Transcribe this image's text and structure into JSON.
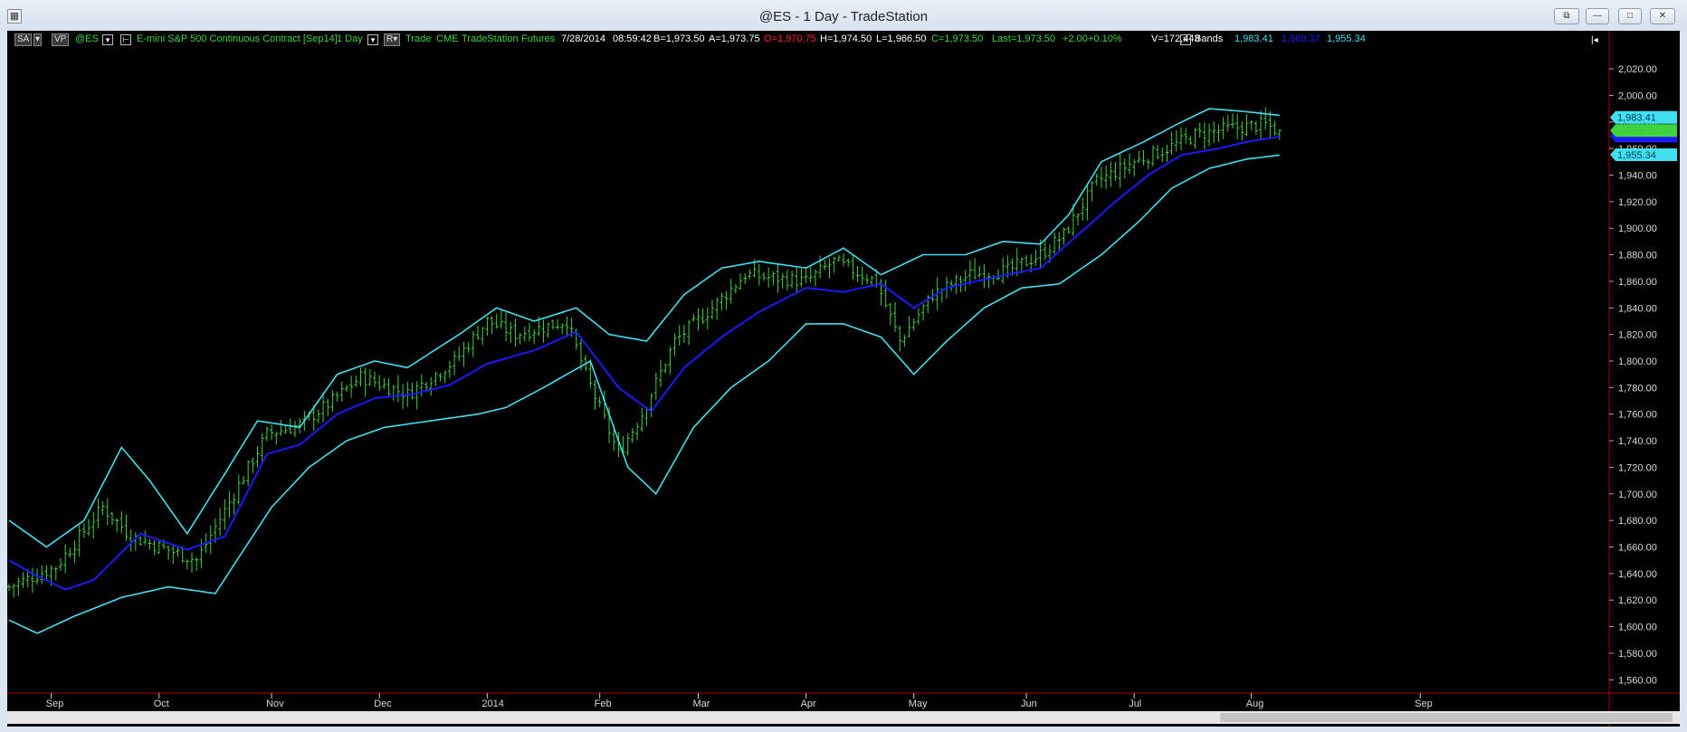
{
  "window": {
    "title": "@ES - 1 Day - TradeStation",
    "app_icon": "chart-app-icon",
    "buttons": [
      "restore-down-icon",
      "minimize-icon",
      "maximize-icon",
      "close-icon"
    ]
  },
  "toolbar": {
    "sa_label": "SA",
    "vp_label": "VP",
    "symbol": "@ES",
    "description": "E-mini S&P 500 Continuous Contract [Sep14]",
    "interval": "1 Day",
    "r_label": "R",
    "type": "Trade",
    "exchange": "CME",
    "source": "TradeStation",
    "category": "Futures",
    "date": "7/28/2014",
    "time": "08:59:42",
    "bid": "B=1,973.50",
    "ask": "A=1,973.75",
    "open": "O=1,970.75",
    "high": "H=1,974.50",
    "low": "L=1,966.50",
    "close": "C=1,973.50",
    "last": "Last=1,973.50",
    "change": "+2.00",
    "change_pct": "+0.10%",
    "volume": "V=172,443",
    "study_name": "Bands",
    "band_upper": "1,983.41",
    "band_mid": "1,969.37",
    "band_lower": "1,955.34",
    "expand_label": "|◂",
    "colors": {
      "green": "#3fd23f",
      "red": "#ff2020",
      "cyan": "#40e0f0",
      "blue": "#1a1aff",
      "white": "#ffffff"
    }
  },
  "axis": {
    "price_labels": [
      "2,020.00",
      "2,000.00",
      "1,980.00",
      "1,960.00",
      "1,940.00",
      "1,920.00",
      "1,900.00",
      "1,880.00",
      "1,860.00",
      "1,840.00",
      "1,820.00",
      "1,800.00",
      "1,780.00",
      "1,760.00",
      "1,740.00",
      "1,720.00",
      "1,700.00",
      "1,680.00",
      "1,660.00",
      "1,640.00",
      "1,620.00",
      "1,600.00",
      "1,580.00",
      "1,560.00"
    ],
    "price_values": [
      2020,
      2000,
      1980,
      1960,
      1940,
      1920,
      1900,
      1880,
      1860,
      1840,
      1820,
      1800,
      1780,
      1760,
      1740,
      1720,
      1700,
      1680,
      1660,
      1640,
      1620,
      1600,
      1580,
      1560
    ],
    "time_labels": [
      "Sep",
      "Oct",
      "Nov",
      "Dec",
      "2014",
      "Feb",
      "Mar",
      "Apr",
      "May",
      "Jun",
      "Jul",
      "Aug",
      "Sep"
    ],
    "time_bar_index": [
      9,
      32,
      56,
      79,
      102,
      126,
      147,
      170,
      193,
      217,
      240,
      265,
      301
    ]
  },
  "price_tags": {
    "upper": "1,983.41",
    "last": "1,973.50",
    "mid": "1,969.37",
    "lower": "1,955.34"
  },
  "chart_data": {
    "type": "line",
    "symbol": "@ES",
    "interval": "1 Day",
    "ylim": [
      1550,
      2035
    ],
    "key_points": [
      [
        0,
        1630
      ],
      [
        10,
        1645
      ],
      [
        20,
        1690
      ],
      [
        26,
        1668
      ],
      [
        40,
        1650
      ],
      [
        48,
        1700
      ],
      [
        55,
        1745
      ],
      [
        62,
        1752
      ],
      [
        69,
        1770
      ],
      [
        75,
        1788
      ],
      [
        85,
        1775
      ],
      [
        95,
        1800
      ],
      [
        102,
        1830
      ],
      [
        108,
        1820
      ],
      [
        119,
        1830
      ],
      [
        123,
        1790
      ],
      [
        130,
        1730
      ],
      [
        135,
        1760
      ],
      [
        142,
        1815
      ],
      [
        150,
        1840
      ],
      [
        157,
        1865
      ],
      [
        170,
        1860
      ],
      [
        176,
        1875
      ],
      [
        185,
        1860
      ],
      [
        190,
        1815
      ],
      [
        197,
        1850
      ],
      [
        205,
        1865
      ],
      [
        213,
        1868
      ],
      [
        220,
        1880
      ],
      [
        225,
        1895
      ],
      [
        232,
        1935
      ],
      [
        240,
        1950
      ],
      [
        247,
        1960
      ],
      [
        253,
        1970
      ],
      [
        260,
        1975
      ],
      [
        268,
        1978
      ],
      [
        271,
        1973
      ]
    ],
    "upper_band_pts": [
      [
        0,
        1680
      ],
      [
        8,
        1660
      ],
      [
        16,
        1680
      ],
      [
        24,
        1735
      ],
      [
        30,
        1710
      ],
      [
        38,
        1670
      ],
      [
        46,
        1715
      ],
      [
        53,
        1755
      ],
      [
        62,
        1750
      ],
      [
        70,
        1790
      ],
      [
        78,
        1800
      ],
      [
        85,
        1795
      ],
      [
        96,
        1820
      ],
      [
        104,
        1840
      ],
      [
        112,
        1830
      ],
      [
        121,
        1840
      ],
      [
        128,
        1820
      ],
      [
        136,
        1815
      ],
      [
        144,
        1850
      ],
      [
        152,
        1870
      ],
      [
        160,
        1875
      ],
      [
        170,
        1870
      ],
      [
        178,
        1885
      ],
      [
        186,
        1865
      ],
      [
        195,
        1880
      ],
      [
        204,
        1880
      ],
      [
        212,
        1890
      ],
      [
        220,
        1888
      ],
      [
        226,
        1910
      ],
      [
        233,
        1950
      ],
      [
        242,
        1965
      ],
      [
        249,
        1978
      ],
      [
        256,
        1990
      ],
      [
        263,
        1988
      ],
      [
        271,
        1985
      ]
    ],
    "mid_band_pts": [
      [
        0,
        1650
      ],
      [
        5,
        1640
      ],
      [
        12,
        1628
      ],
      [
        18,
        1635
      ],
      [
        28,
        1670
      ],
      [
        38,
        1658
      ],
      [
        46,
        1668
      ],
      [
        55,
        1730
      ],
      [
        62,
        1737
      ],
      [
        70,
        1760
      ],
      [
        78,
        1772
      ],
      [
        86,
        1775
      ],
      [
        94,
        1782
      ],
      [
        102,
        1798
      ],
      [
        112,
        1808
      ],
      [
        121,
        1822
      ],
      [
        130,
        1780
      ],
      [
        137,
        1762
      ],
      [
        144,
        1795
      ],
      [
        152,
        1818
      ],
      [
        160,
        1837
      ],
      [
        170,
        1855
      ],
      [
        178,
        1852
      ],
      [
        186,
        1858
      ],
      [
        193,
        1840
      ],
      [
        200,
        1855
      ],
      [
        210,
        1863
      ],
      [
        220,
        1870
      ],
      [
        228,
        1895
      ],
      [
        236,
        1920
      ],
      [
        243,
        1940
      ],
      [
        250,
        1955
      ],
      [
        258,
        1960
      ],
      [
        264,
        1965
      ],
      [
        271,
        1969
      ]
    ],
    "lower_band_pts": [
      [
        0,
        1605
      ],
      [
        6,
        1595
      ],
      [
        14,
        1608
      ],
      [
        24,
        1622
      ],
      [
        34,
        1630
      ],
      [
        44,
        1625
      ],
      [
        56,
        1690
      ],
      [
        64,
        1720
      ],
      [
        72,
        1740
      ],
      [
        80,
        1750
      ],
      [
        90,
        1755
      ],
      [
        100,
        1760
      ],
      [
        106,
        1765
      ],
      [
        114,
        1780
      ],
      [
        124,
        1800
      ],
      [
        132,
        1720
      ],
      [
        138,
        1700
      ],
      [
        146,
        1750
      ],
      [
        154,
        1780
      ],
      [
        162,
        1800
      ],
      [
        170,
        1828
      ],
      [
        178,
        1828
      ],
      [
        186,
        1818
      ],
      [
        193,
        1790
      ],
      [
        200,
        1815
      ],
      [
        208,
        1840
      ],
      [
        216,
        1855
      ],
      [
        224,
        1858
      ],
      [
        233,
        1880
      ],
      [
        241,
        1905
      ],
      [
        248,
        1930
      ],
      [
        256,
        1945
      ],
      [
        264,
        1952
      ],
      [
        271,
        1955
      ]
    ],
    "last_bar": {
      "open": 1970.75,
      "high": 1974.5,
      "low": 1966.5,
      "close": 1973.5
    },
    "bands_last": {
      "upper": 1983.41,
      "mid": 1969.37,
      "lower": 1955.34
    }
  }
}
